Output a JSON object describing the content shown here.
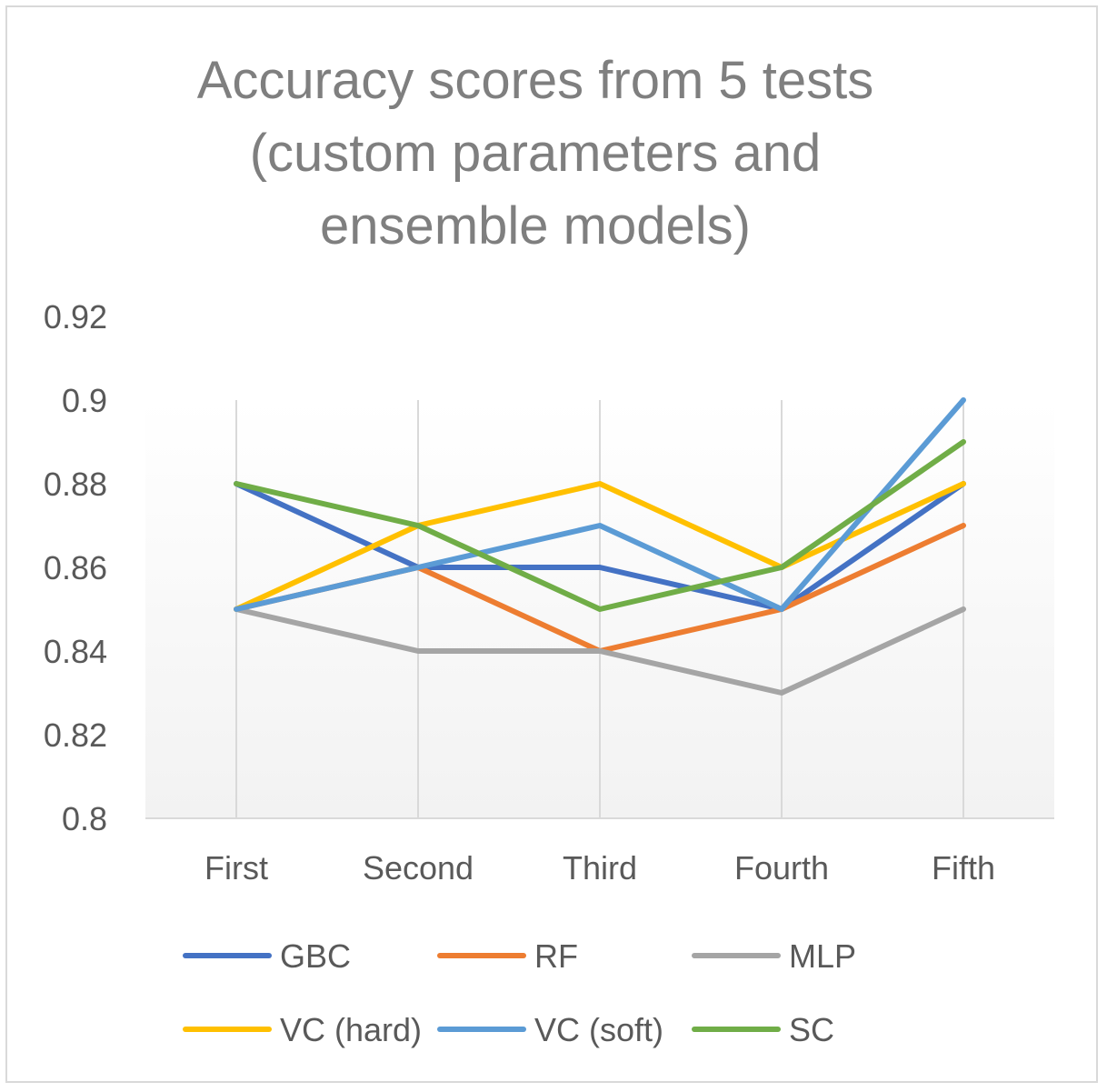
{
  "chart_data": {
    "type": "line",
    "title_lines": [
      "Accuracy scores from 5 tests",
      "(custom parameters and",
      "ensemble models)"
    ],
    "categories": [
      "First",
      "Second",
      "Third",
      "Fourth",
      "Fifth"
    ],
    "ylim": [
      0.8,
      0.92
    ],
    "yticks": [
      "0.8",
      "0.82",
      "0.84",
      "0.86",
      "0.88",
      "0.9",
      "0.92"
    ],
    "grid": "vertical",
    "legend_position": "bottom",
    "series": [
      {
        "name": "GBC",
        "color": "#4472c4",
        "values": [
          0.88,
          0.86,
          0.86,
          0.85,
          0.88
        ]
      },
      {
        "name": "RF",
        "color": "#ed7d31",
        "values": [
          0.85,
          0.86,
          0.84,
          0.85,
          0.87
        ]
      },
      {
        "name": "MLP",
        "color": "#a5a5a5",
        "values": [
          0.85,
          0.84,
          0.84,
          0.83,
          0.85
        ]
      },
      {
        "name": "VC (hard)",
        "color": "#ffc000",
        "values": [
          0.85,
          0.87,
          0.88,
          0.86,
          0.88
        ]
      },
      {
        "name": "VC (soft)",
        "color": "#5b9bd5",
        "values": [
          0.85,
          0.86,
          0.87,
          0.85,
          0.9
        ]
      },
      {
        "name": "SC",
        "color": "#70ad47",
        "values": [
          0.88,
          0.87,
          0.85,
          0.86,
          0.89
        ]
      }
    ]
  }
}
